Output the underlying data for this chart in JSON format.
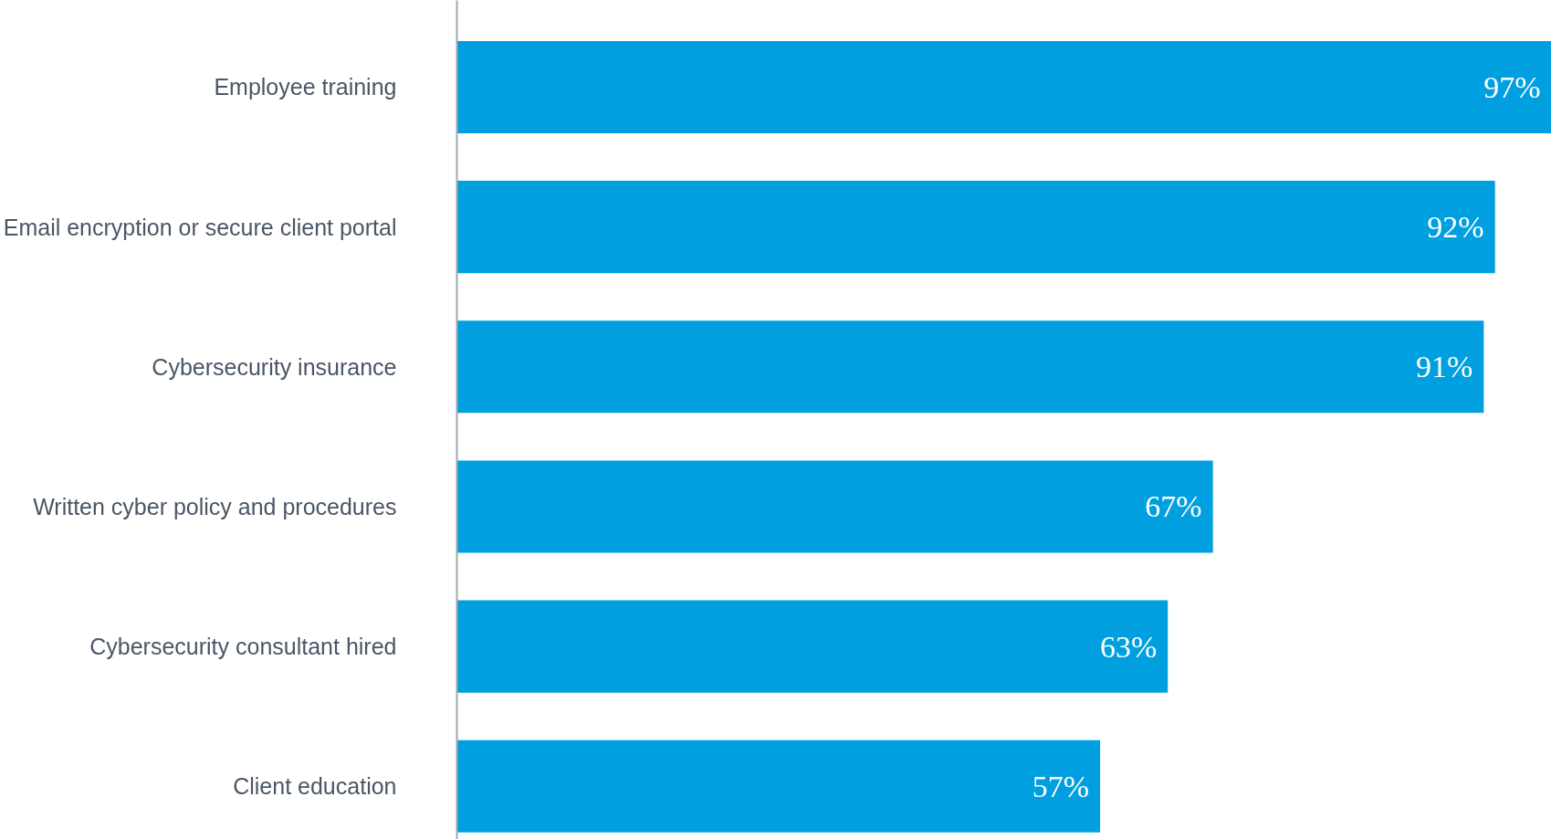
{
  "chart_data": {
    "type": "bar",
    "orientation": "horizontal",
    "categories": [
      "Employee training",
      "Email encryption or secure client portal",
      "Cybersecurity insurance",
      "Written cyber policy and procedures",
      "Cybersecurity consultant hired",
      "Client education"
    ],
    "values": [
      97,
      92,
      91,
      67,
      63,
      57
    ],
    "value_labels": [
      "97%",
      "92%",
      "91%",
      "67%",
      "63%",
      "57%"
    ],
    "color": "#009fdf"
  }
}
